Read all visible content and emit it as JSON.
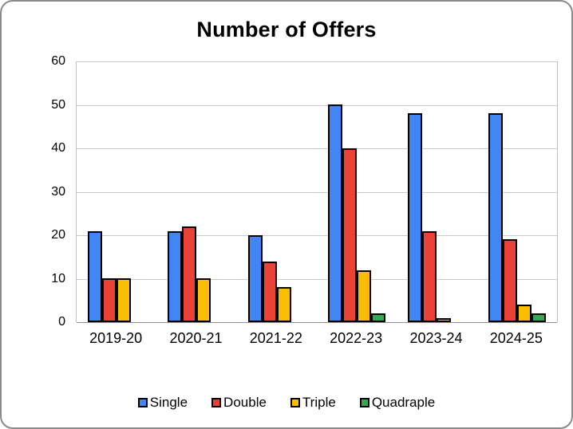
{
  "chart_data": {
    "type": "bar",
    "title": "Number of Offers",
    "categories": [
      "2019-20",
      "2020-21",
      "2021-22",
      "2022-23",
      "2023-24",
      "2024-25"
    ],
    "series": [
      {
        "name": "Single",
        "color": "#4285F4",
        "values": [
          21,
          21,
          20,
          50,
          48,
          48
        ]
      },
      {
        "name": "Double",
        "color": "#EA4335",
        "values": [
          10,
          22,
          14,
          40,
          21,
          19
        ]
      },
      {
        "name": "Triple",
        "color": "#FBBC04",
        "values": [
          10,
          10,
          8,
          12,
          1,
          4
        ]
      },
      {
        "name": "Quadraple",
        "color": "#34A853",
        "values": [
          0,
          0,
          0,
          2,
          0,
          2
        ]
      }
    ],
    "xlabel": "",
    "ylabel": "",
    "ylim": [
      0,
      60
    ],
    "yticks": [
      0,
      10,
      20,
      30,
      40,
      50,
      60
    ],
    "grid": true,
    "legend_position": "bottom",
    "bar_outline_color": "#000000",
    "gridline_color": "#c9c9c9"
  }
}
